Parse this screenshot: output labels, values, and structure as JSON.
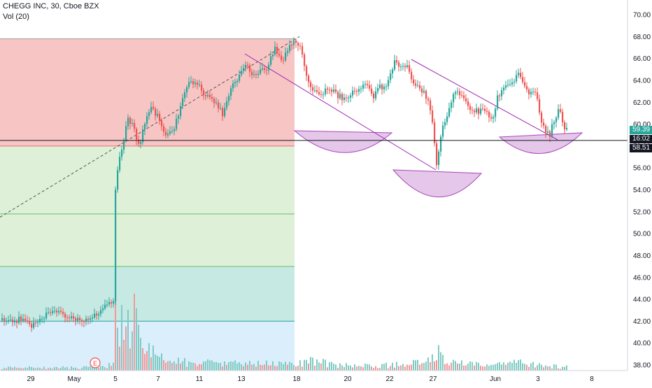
{
  "header": {
    "symbol_line": "CHEGG INC, 30, Cboe BZX",
    "indicator_line": "Vol (20)"
  },
  "price_badges": {
    "last_price": "59.39",
    "countdown": "16:02",
    "level_price": "58.51"
  },
  "colors": {
    "up": "#26a69a",
    "down": "#ef5350",
    "zone_red": "#f7c5c4",
    "zone_green": "#dff0d8",
    "zone_teal": "#c7e9e4",
    "zone_blue": "#dbeefc",
    "pattern_fill": "#e1bee7",
    "pattern_line": "#9c27b0",
    "badge_green": "#26a69a",
    "badge_dark": "#131722"
  },
  "chart_data": {
    "type": "candlestick",
    "title": "CHEGG INC, 30, Cboe BZX",
    "y_ticks": [
      "38.00",
      "40.00",
      "42.00",
      "44.00",
      "46.00",
      "48.00",
      "50.00",
      "52.00",
      "54.00",
      "56.00",
      "58.00",
      "60.00",
      "62.00",
      "64.00",
      "66.00",
      "68.00",
      "70.00"
    ],
    "ylim": [
      37.5,
      71.2
    ],
    "x_ticks": [
      "29",
      "May",
      "5",
      "7",
      "11",
      "13",
      "18",
      "20",
      "22",
      "27",
      "Jun",
      "3",
      "8"
    ],
    "event_marker": "E",
    "horizontal_level": 58.51,
    "last_price": 59.39,
    "path": [
      [
        0,
        42.1
      ],
      [
        14,
        41.9
      ],
      [
        28,
        42.2
      ],
      [
        44,
        41.5
      ],
      [
        60,
        42.4
      ],
      [
        80,
        42.9
      ],
      [
        100,
        42.3
      ],
      [
        118,
        42.2
      ],
      [
        133,
        42.4
      ],
      [
        148,
        43.2
      ],
      [
        161,
        43.9
      ],
      [
        163,
        53.5
      ],
      [
        168,
        56.3
      ],
      [
        176,
        58.6
      ],
      [
        182,
        60.6
      ],
      [
        190,
        59.8
      ],
      [
        198,
        57.9
      ],
      [
        206,
        60.3
      ],
      [
        214,
        61.4
      ],
      [
        226,
        60.6
      ],
      [
        236,
        58.9
      ],
      [
        246,
        59.2
      ],
      [
        256,
        61.4
      ],
      [
        266,
        63.6
      ],
      [
        280,
        63.8
      ],
      [
        292,
        62.6
      ],
      [
        304,
        62.2
      ],
      [
        318,
        60.8
      ],
      [
        330,
        63.6
      ],
      [
        342,
        64.4
      ],
      [
        352,
        65.6
      ],
      [
        360,
        64.4
      ],
      [
        368,
        64.6
      ],
      [
        380,
        65.1
      ],
      [
        392,
        66.8
      ],
      [
        402,
        65.6
      ],
      [
        412,
        67.0
      ],
      [
        420,
        67.8
      ],
      [
        428,
        67.2
      ],
      [
        438,
        64.4
      ],
      [
        446,
        63.1
      ],
      [
        456,
        62.4
      ],
      [
        468,
        63.4
      ],
      [
        480,
        62.7
      ],
      [
        492,
        62.3
      ],
      [
        504,
        63.0
      ],
      [
        514,
        63.3
      ],
      [
        522,
        63.8
      ],
      [
        532,
        62.4
      ],
      [
        540,
        63.3
      ],
      [
        552,
        63.6
      ],
      [
        562,
        65.6
      ],
      [
        570,
        65.4
      ],
      [
        580,
        65.3
      ],
      [
        590,
        63.6
      ],
      [
        600,
        63.1
      ],
      [
        612,
        62.3
      ],
      [
        618,
        59.5
      ],
      [
        623,
        56.3
      ],
      [
        630,
        59.5
      ],
      [
        640,
        60.9
      ],
      [
        648,
        63.3
      ],
      [
        656,
        62.7
      ],
      [
        664,
        62.1
      ],
      [
        672,
        61.3
      ],
      [
        684,
        61.2
      ],
      [
        696,
        61.1
      ],
      [
        702,
        60.3
      ],
      [
        710,
        62.4
      ],
      [
        718,
        63.4
      ],
      [
        728,
        63.4
      ],
      [
        740,
        64.6
      ],
      [
        748,
        63.3
      ],
      [
        756,
        62.9
      ],
      [
        766,
        62.9
      ],
      [
        768,
        61.3
      ],
      [
        776,
        59.8
      ],
      [
        784,
        58.9
      ],
      [
        792,
        60.6
      ],
      [
        798,
        61.3
      ],
      [
        804,
        60.0
      ],
      [
        808,
        59.4
      ]
    ],
    "volume_heights": [
      [
        0,
        5
      ],
      [
        40,
        5
      ],
      [
        80,
        5
      ],
      [
        120,
        5
      ],
      [
        150,
        6
      ],
      [
        162,
        14
      ],
      [
        164,
        28
      ],
      [
        170,
        92
      ],
      [
        175,
        85
      ],
      [
        180,
        98
      ],
      [
        186,
        70
      ],
      [
        192,
        80
      ],
      [
        198,
        58
      ],
      [
        206,
        40
      ],
      [
        214,
        35
      ],
      [
        230,
        22
      ],
      [
        250,
        15
      ],
      [
        280,
        14
      ],
      [
        310,
        12
      ],
      [
        340,
        12
      ],
      [
        380,
        12
      ],
      [
        410,
        12
      ],
      [
        420,
        8
      ],
      [
        440,
        18
      ],
      [
        470,
        12
      ],
      [
        500,
        8
      ],
      [
        530,
        9
      ],
      [
        560,
        9
      ],
      [
        590,
        14
      ],
      [
        610,
        14
      ],
      [
        622,
        38
      ],
      [
        632,
        18
      ],
      [
        660,
        12
      ],
      [
        700,
        8
      ],
      [
        740,
        14
      ],
      [
        780,
        8
      ],
      [
        808,
        6
      ]
    ],
    "volume_spikes": [
      [
        164,
        128
      ],
      [
        192,
        110
      ],
      [
        176,
        44
      ]
    ],
    "zones": [
      {
        "name": "zone-red",
        "top": 67.8,
        "bottom": 58.0
      },
      {
        "name": "zone-green",
        "top": 58.0,
        "bottom": 47.0
      },
      {
        "name": "zone-teal",
        "top": 47.0,
        "bottom": 42.0
      },
      {
        "name": "zone-blue",
        "top": 42.0,
        "bottom": 37.5
      }
    ]
  }
}
